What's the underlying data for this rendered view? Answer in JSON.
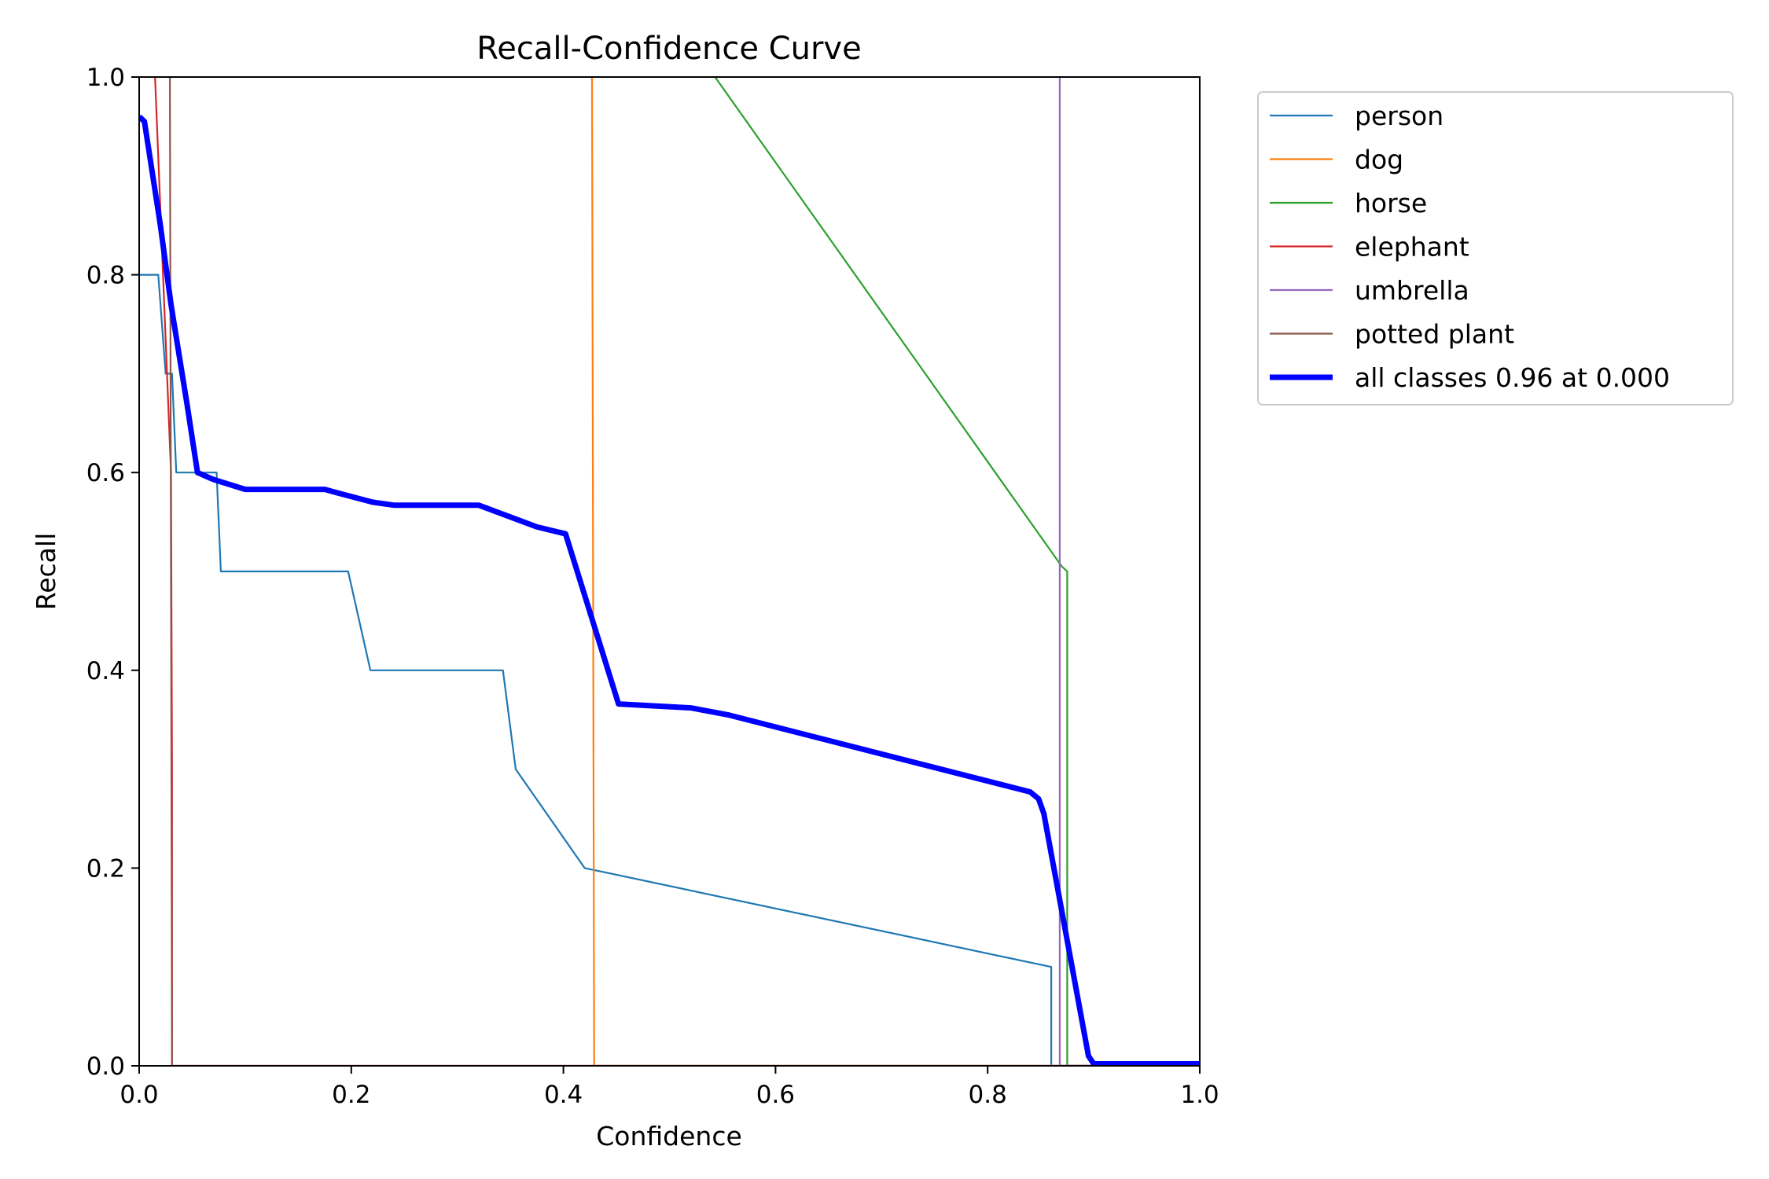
{
  "chart_data": {
    "type": "line",
    "title": "Recall-Confidence Curve",
    "xlabel": "Confidence",
    "ylabel": "Recall",
    "xlim": [
      0,
      1
    ],
    "ylim": [
      0,
      1
    ],
    "xticks": [
      "0.0",
      "0.2",
      "0.4",
      "0.6",
      "0.8",
      "1.0"
    ],
    "yticks": [
      "0.0",
      "0.2",
      "0.4",
      "0.6",
      "0.8",
      "1.0"
    ],
    "grid": false,
    "legend_position": "outside-top-right",
    "series": [
      {
        "name": "person",
        "color": "#1f77b4",
        "points": [
          [
            0,
            0.8
          ],
          [
            0.018,
            0.8
          ],
          [
            0.025,
            0.7
          ],
          [
            0.031,
            0.7
          ],
          [
            0.035,
            0.6
          ],
          [
            0.073,
            0.6
          ],
          [
            0.077,
            0.5
          ],
          [
            0.197,
            0.5
          ],
          [
            0.218,
            0.4
          ],
          [
            0.343,
            0.4
          ],
          [
            0.355,
            0.3
          ],
          [
            0.42,
            0.2
          ],
          [
            0.86,
            0.1
          ],
          [
            0.86,
            0
          ],
          [
            1.0,
            0
          ]
        ]
      },
      {
        "name": "dog",
        "color": "#ff7f0e",
        "points": [
          [
            0.427,
            1.0
          ],
          [
            0.429,
            0
          ],
          [
            1.0,
            0
          ]
        ]
      },
      {
        "name": "horse",
        "color": "#2ca02c",
        "points": [
          [
            0.543,
            1.0
          ],
          [
            0.87,
            0.505
          ],
          [
            0.875,
            0.5
          ],
          [
            0.875,
            0
          ],
          [
            1.0,
            0
          ]
        ]
      },
      {
        "name": "elephant",
        "color": "#d62728",
        "points": [
          [
            0.015,
            1.0
          ],
          [
            0.03,
            0.6
          ],
          [
            0.031,
            0.3
          ],
          [
            0.031,
            0
          ],
          [
            1.0,
            0
          ]
        ]
      },
      {
        "name": "umbrella",
        "color": "#9467bd",
        "points": [
          [
            0.868,
            1.0
          ],
          [
            0.868,
            0
          ],
          [
            1.0,
            0
          ]
        ]
      },
      {
        "name": "potted plant",
        "color": "#8c564b",
        "points": [
          [
            0.029,
            1.0
          ],
          [
            0.03,
            0.5
          ],
          [
            0.031,
            0
          ],
          [
            1.0,
            0
          ]
        ]
      },
      {
        "name": "all classes 0.96 at 0.000",
        "color": "#0000ff",
        "bold": true,
        "points": [
          [
            0,
            0.96
          ],
          [
            0.005,
            0.955
          ],
          [
            0.02,
            0.85
          ],
          [
            0.03,
            0.77
          ],
          [
            0.045,
            0.67
          ],
          [
            0.055,
            0.6
          ],
          [
            0.07,
            0.593
          ],
          [
            0.1,
            0.583
          ],
          [
            0.175,
            0.583
          ],
          [
            0.185,
            0.58
          ],
          [
            0.22,
            0.57
          ],
          [
            0.24,
            0.567
          ],
          [
            0.32,
            0.567
          ],
          [
            0.33,
            0.563
          ],
          [
            0.355,
            0.553
          ],
          [
            0.375,
            0.545
          ],
          [
            0.402,
            0.538
          ],
          [
            0.452,
            0.366
          ],
          [
            0.52,
            0.362
          ],
          [
            0.555,
            0.355
          ],
          [
            0.84,
            0.277
          ],
          [
            0.848,
            0.27
          ],
          [
            0.853,
            0.255
          ],
          [
            0.895,
            0.01
          ],
          [
            0.9,
            0.002
          ],
          [
            1.0,
            0.002
          ]
        ]
      }
    ]
  }
}
